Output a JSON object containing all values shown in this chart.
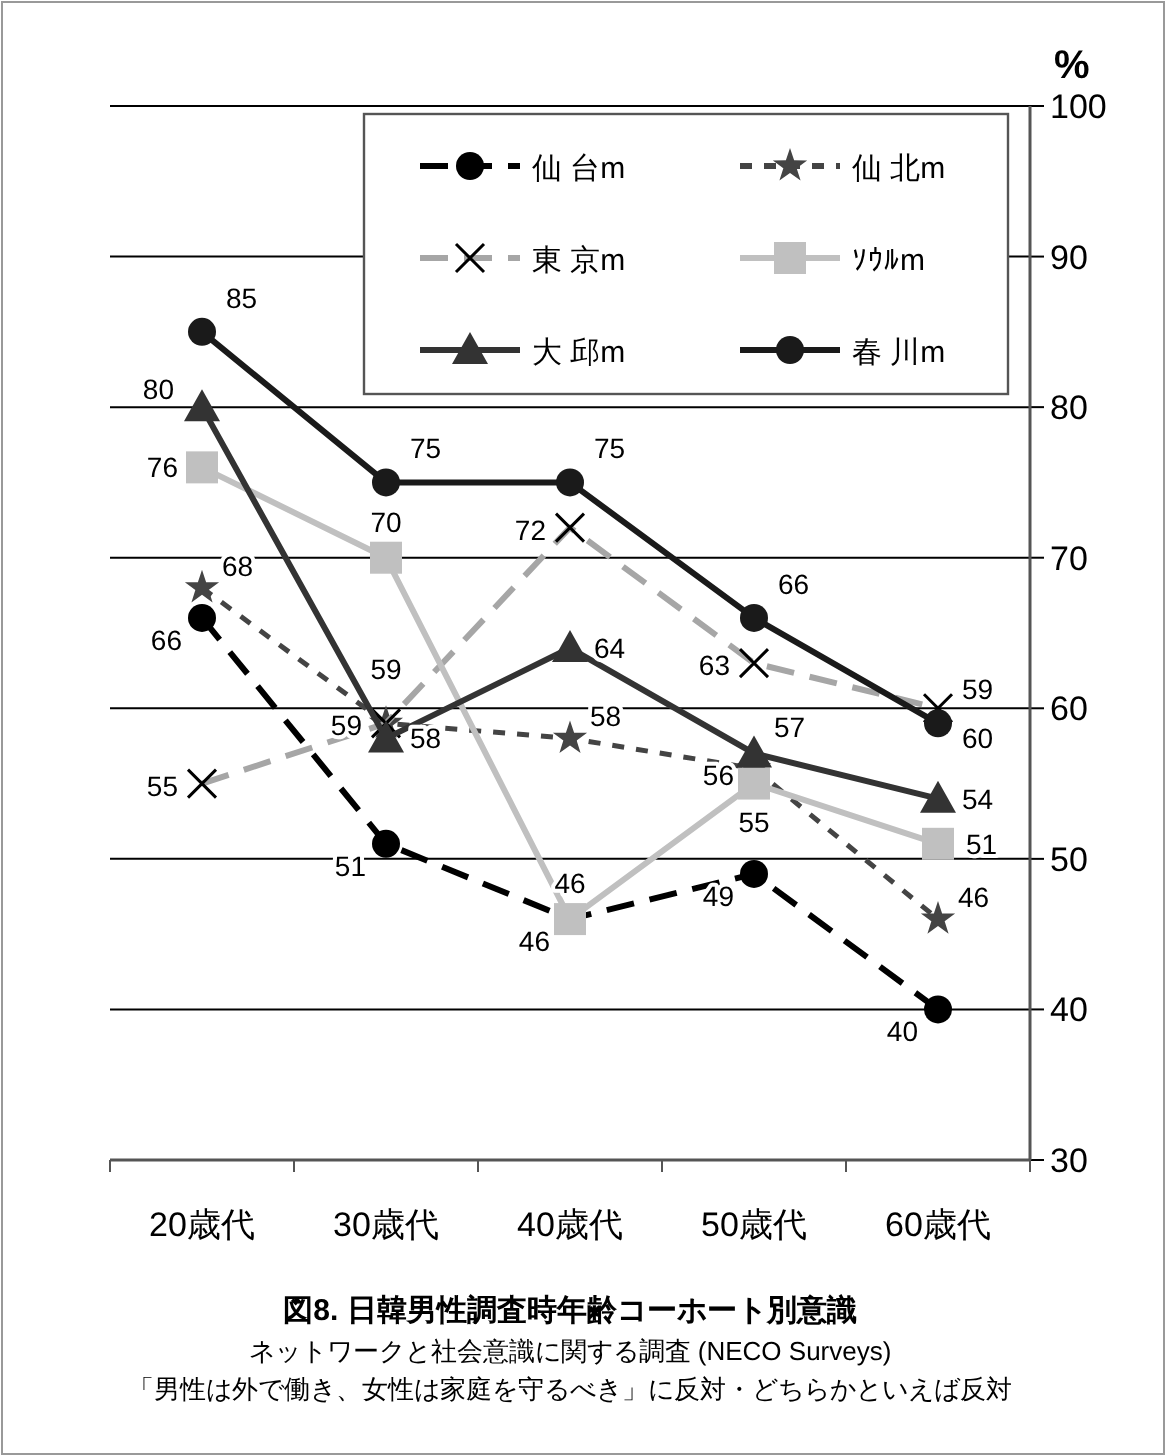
{
  "chart_data": {
    "type": "line",
    "title": "図8. 日韓男性調査時年齢コーホート別意識",
    "subtitle": "ネットワークと社会意識に関する調査 (NECO Surveys)",
    "annotations": [
      "「男性は外で働き、女性は家庭を守るべき」に反対・どちらかといえば反対"
    ],
    "ylabel": "%",
    "categories": [
      "20歳代",
      "30歳代",
      "40歳代",
      "50歳代",
      "60歳代"
    ],
    "ylim": [
      30,
      100
    ],
    "yticks": [
      30,
      40,
      50,
      60,
      70,
      80,
      90,
      100
    ],
    "grid": "y",
    "legend": "top right",
    "data_labels": true,
    "series": [
      {
        "name": "仙 台m",
        "color": "#000000",
        "marker": "circle",
        "line_style": "dashed",
        "values": [
          66,
          51,
          46,
          49,
          40
        ]
      },
      {
        "name": "仙 北m",
        "color": "#444444",
        "marker": "star",
        "line_style": "dotted",
        "values": [
          68,
          59,
          58,
          56,
          46
        ]
      },
      {
        "name": "東 京m",
        "color": "#a6a6a6",
        "marker": "cross",
        "line_style": "dashed",
        "values": [
          55,
          59,
          72,
          63,
          60
        ]
      },
      {
        "name": "ｿｳﾙm",
        "color": "#c0c0c0",
        "marker": "square",
        "line_style": "solid",
        "values": [
          76,
          70,
          46,
          55,
          51
        ]
      },
      {
        "name": "大 邱m",
        "color": "#333333",
        "marker": "triangle",
        "line_style": "solid",
        "values": [
          80,
          58,
          64,
          57,
          54
        ]
      },
      {
        "name": "春 川m",
        "color": "#1a1a1a",
        "marker": "circle",
        "line_style": "solid",
        "values": [
          85,
          75,
          75,
          66,
          59
        ]
      }
    ]
  }
}
